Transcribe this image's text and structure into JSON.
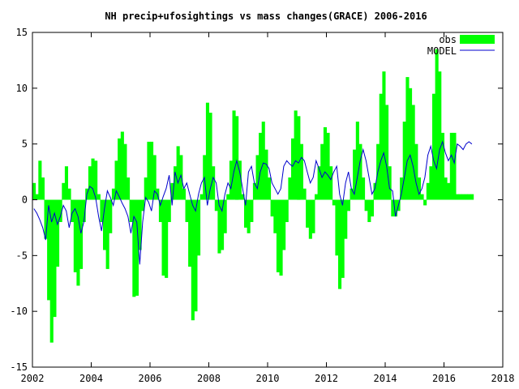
{
  "chart_data": {
    "type": "bar",
    "title": "NH precip+ufosightings vs mass changes(GRACE) 2006-2016",
    "xlabel": "",
    "ylabel": "",
    "xlim": [
      2002,
      2018
    ],
    "ylim": [
      -15,
      15
    ],
    "xticks": [
      "2002",
      "2004",
      "2006",
      "2008",
      "2010",
      "2012",
      "2014",
      "2016",
      "2018"
    ],
    "yticks": [
      "15",
      "10",
      "5",
      "0",
      "-5",
      "-10",
      "-15"
    ],
    "grid": false,
    "legend_position": "top-right",
    "colors": {
      "obs": "#00ff00",
      "model": "#0000cc"
    },
    "series": [
      {
        "name": "obs",
        "style": "boxes",
        "x": [
          2002.0,
          2002.1,
          2002.2,
          2002.3,
          2002.4,
          2002.5,
          2002.6,
          2002.7,
          2002.8,
          2002.9,
          2003.0,
          2003.1,
          2003.2,
          2003.3,
          2003.4,
          2003.5,
          2003.6,
          2003.7,
          2003.8,
          2003.9,
          2004.0,
          2004.1,
          2004.2,
          2004.3,
          2004.4,
          2004.5,
          2004.6,
          2004.7,
          2004.8,
          2004.9,
          2005.0,
          2005.1,
          2005.2,
          2005.3,
          2005.4,
          2005.5,
          2005.6,
          2005.7,
          2005.8,
          2005.9,
          2006.0,
          2006.1,
          2006.2,
          2006.3,
          2006.4,
          2006.5,
          2006.6,
          2006.7,
          2006.8,
          2006.9,
          2007.0,
          2007.1,
          2007.2,
          2007.3,
          2007.4,
          2007.5,
          2007.6,
          2007.7,
          2007.8,
          2007.9,
          2008.0,
          2008.1,
          2008.2,
          2008.3,
          2008.4,
          2008.5,
          2008.6,
          2008.7,
          2008.8,
          2008.9,
          2009.0,
          2009.1,
          2009.2,
          2009.3,
          2009.4,
          2009.5,
          2009.6,
          2009.7,
          2009.8,
          2009.9,
          2010.0,
          2010.1,
          2010.2,
          2010.3,
          2010.4,
          2010.5,
          2010.6,
          2010.7,
          2010.8,
          2010.9,
          2011.0,
          2011.1,
          2011.2,
          2011.3,
          2011.4,
          2011.5,
          2011.6,
          2011.7,
          2011.8,
          2011.9,
          2012.0,
          2012.1,
          2012.2,
          2012.3,
          2012.4,
          2012.5,
          2012.6,
          2012.7,
          2012.8,
          2012.9,
          2013.0,
          2013.1,
          2013.2,
          2013.3,
          2013.4,
          2013.5,
          2013.6,
          2013.7,
          2013.8,
          2013.9,
          2014.0,
          2014.1,
          2014.2,
          2014.3,
          2014.4,
          2014.5,
          2014.6,
          2014.7,
          2014.8,
          2014.9,
          2015.0,
          2015.1,
          2015.2,
          2015.3,
          2015.4,
          2015.5,
          2015.6,
          2015.7,
          2015.8,
          2015.9,
          2016.0,
          2016.1,
          2016.2,
          2016.3,
          2016.4,
          2016.5,
          2016.6,
          2016.7,
          2016.8,
          2016.9
        ],
        "values": [
          1.5,
          0.5,
          3.5,
          2.0,
          -3.5,
          -9.0,
          -12.8,
          -10.5,
          -6.0,
          -2.0,
          1.5,
          3.0,
          1.0,
          -2.0,
          -6.5,
          -7.7,
          -6.2,
          -2.0,
          1.0,
          3.0,
          3.7,
          3.5,
          0.5,
          -2.0,
          -4.5,
          -6.2,
          -3.0,
          1.0,
          3.5,
          5.5,
          6.1,
          5.0,
          2.0,
          -2.0,
          -8.7,
          -8.6,
          -4.5,
          -1.0,
          2.0,
          5.2,
          5.2,
          4.0,
          1.0,
          -2.0,
          -6.8,
          -7.0,
          -2.0,
          1.5,
          3.0,
          4.8,
          4.0,
          1.0,
          -2.0,
          -6.0,
          -10.8,
          -10.0,
          -5.0,
          0.5,
          4.0,
          8.7,
          7.8,
          3.0,
          -1.0,
          -4.8,
          -4.5,
          -3.0,
          0.5,
          3.5,
          8.0,
          7.5,
          3.5,
          0.5,
          -2.5,
          -3.0,
          -2.0,
          1.5,
          4.0,
          6.0,
          7.0,
          4.5,
          2.0,
          -1.5,
          -3.0,
          -6.5,
          -6.8,
          -4.5,
          -2.0,
          2.0,
          5.5,
          8.0,
          7.5,
          5.0,
          1.0,
          -2.5,
          -3.5,
          -3.0,
          0.5,
          3.0,
          5.0,
          6.5,
          6.0,
          3.0,
          -0.5,
          -5.0,
          -8.0,
          -7.0,
          -3.5,
          -1.0,
          1.0,
          4.5,
          7.0,
          5.0,
          2.0,
          -1.0,
          -2.0,
          -1.5,
          1.5,
          5.0,
          9.5,
          11.5,
          8.5,
          3.0,
          -1.5,
          -1.5,
          -1.0,
          2.0,
          7.0,
          11.0,
          10.0,
          8.5,
          5.0,
          2.0,
          0.5,
          -0.5,
          1.5,
          3.0,
          9.5,
          13.5,
          11.5,
          6.0,
          2.0,
          1.5,
          6.0,
          6.0,
          0.5,
          0.5,
          0.5,
          0.5,
          0.5,
          0.5
        ]
      },
      {
        "name": "MODEL",
        "style": "line",
        "x": [
          2002.0,
          2002.1,
          2002.2,
          2002.3,
          2002.4,
          2002.5,
          2002.6,
          2002.7,
          2002.8,
          2002.9,
          2003.0,
          2003.1,
          2003.2,
          2003.3,
          2003.4,
          2003.5,
          2003.6,
          2003.7,
          2003.8,
          2003.9,
          2004.0,
          2004.1,
          2004.2,
          2004.3,
          2004.4,
          2004.5,
          2004.6,
          2004.7,
          2004.8,
          2004.9,
          2005.0,
          2005.1,
          2005.2,
          2005.3,
          2005.4,
          2005.5,
          2005.6,
          2005.7,
          2005.8,
          2005.9,
          2006.0,
          2006.1,
          2006.2,
          2006.3,
          2006.4,
          2006.5,
          2006.6,
          2006.7,
          2006.8,
          2006.9,
          2007.0,
          2007.1,
          2007.2,
          2007.3,
          2007.4,
          2007.5,
          2007.6,
          2007.7,
          2007.8,
          2007.9,
          2008.0,
          2008.1,
          2008.2,
          2008.3,
          2008.4,
          2008.5,
          2008.6,
          2008.7,
          2008.8,
          2008.9,
          2009.0,
          2009.1,
          2009.2,
          2009.3,
          2009.4,
          2009.5,
          2009.6,
          2009.7,
          2009.8,
          2009.9,
          2010.0,
          2010.1,
          2010.2,
          2010.3,
          2010.4,
          2010.5,
          2010.6,
          2010.7,
          2010.8,
          2010.9,
          2011.0,
          2011.1,
          2011.2,
          2011.3,
          2011.4,
          2011.5,
          2011.6,
          2011.7,
          2011.8,
          2011.9,
          2012.0,
          2012.1,
          2012.2,
          2012.3,
          2012.4,
          2012.5,
          2012.6,
          2012.7,
          2012.8,
          2012.9,
          2013.0,
          2013.1,
          2013.2,
          2013.3,
          2013.4,
          2013.5,
          2013.6,
          2013.7,
          2013.8,
          2013.9,
          2014.0,
          2014.1,
          2014.2,
          2014.3,
          2014.4,
          2014.5,
          2014.6,
          2014.7,
          2014.8,
          2014.9,
          2015.0,
          2015.1,
          2015.2,
          2015.3,
          2015.4,
          2015.5,
          2015.6,
          2015.7,
          2015.8,
          2015.9,
          2016.0,
          2016.1,
          2016.2,
          2016.3,
          2016.4,
          2016.5,
          2016.6,
          2016.7,
          2016.8,
          2016.9
        ],
        "values": [
          -0.8,
          -1.2,
          -1.8,
          -2.5,
          -3.6,
          -0.5,
          -2.0,
          -1.2,
          -2.2,
          -1.5,
          -0.5,
          -1.0,
          -2.5,
          -1.2,
          -0.8,
          -1.5,
          -3.0,
          -2.0,
          0.5,
          1.2,
          1.0,
          0.2,
          -1.5,
          -2.8,
          -0.8,
          0.8,
          0.2,
          -0.5,
          0.8,
          0.3,
          -0.3,
          -0.8,
          -1.5,
          -3.0,
          -1.5,
          -2.0,
          -5.8,
          -2.0,
          0.2,
          -0.2,
          -1.0,
          0.8,
          0.5,
          -0.5,
          0.3,
          1.0,
          2.2,
          -0.5,
          2.5,
          1.5,
          2.2,
          1.0,
          1.5,
          0.5,
          -0.5,
          -1.0,
          0.5,
          1.5,
          2.0,
          -0.5,
          1.0,
          2.0,
          1.5,
          -0.5,
          -1.0,
          0.5,
          1.5,
          1.0,
          2.5,
          3.5,
          2.5,
          1.0,
          -0.5,
          2.5,
          3.0,
          1.5,
          1.0,
          2.5,
          3.3,
          3.2,
          2.8,
          1.5,
          1.0,
          0.5,
          1.0,
          3.0,
          3.5,
          3.2,
          3.0,
          3.5,
          3.3,
          3.8,
          3.5,
          2.5,
          1.5,
          2.0,
          3.5,
          2.8,
          2.0,
          2.5,
          2.2,
          1.8,
          2.5,
          3.0,
          0.5,
          -0.5,
          1.5,
          2.5,
          1.0,
          0.5,
          2.0,
          3.5,
          4.5,
          3.5,
          2.0,
          0.5,
          1.0,
          2.5,
          3.5,
          4.2,
          3.0,
          1.0,
          0.8,
          -1.5,
          -0.5,
          0.5,
          2.0,
          3.5,
          4.0,
          3.0,
          1.5,
          0.5,
          1.0,
          2.0,
          4.0,
          4.8,
          3.5,
          2.8,
          4.5,
          5.2,
          4.2,
          3.5,
          4.0,
          3.3,
          5.0,
          4.8,
          4.5,
          5.0,
          5.2,
          5.0
        ]
      }
    ]
  }
}
